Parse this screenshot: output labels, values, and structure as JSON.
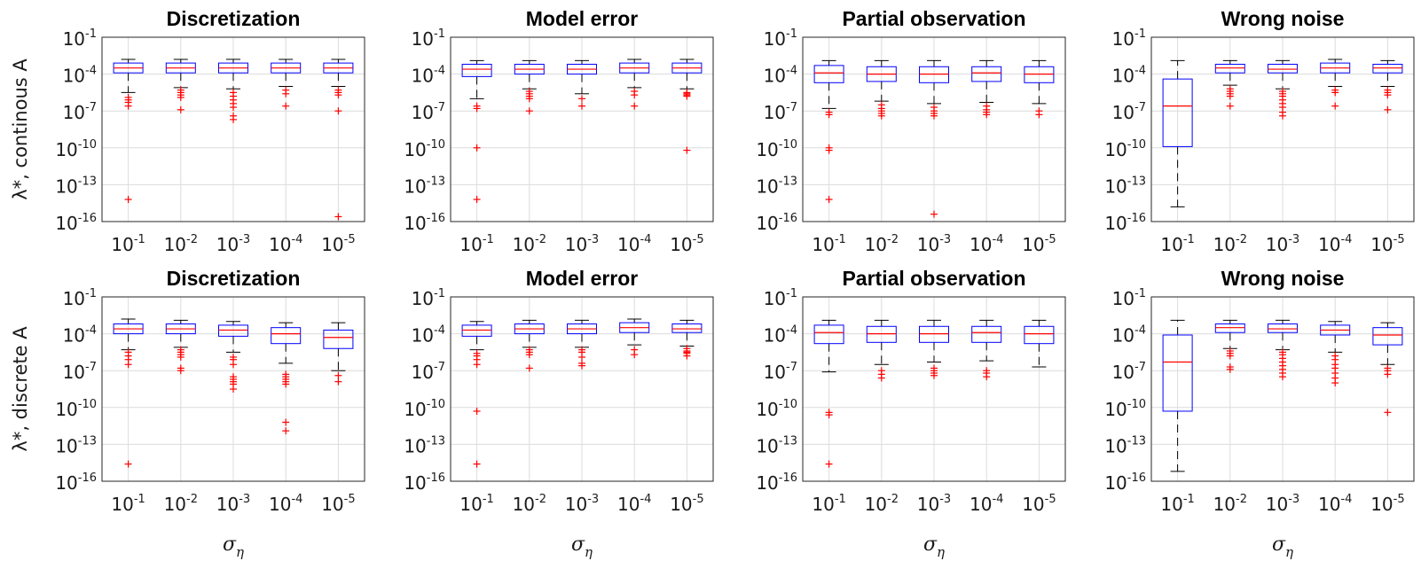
{
  "figure": {
    "row_labels": [
      "λ*, continous A",
      "λ*, discrete A"
    ],
    "xlabel": "σ_η"
  },
  "chart_data": [
    {
      "type": "box",
      "title": "Discretization",
      "ylabel": "λ*, continous A",
      "xlabel": "σ_η",
      "yscale": "log",
      "ylim": [
        1e-16,
        0.1
      ],
      "y_ticks": [
        "10^-1",
        "10^-4",
        "10^-7",
        "10^-10",
        "10^-13",
        "10^-16"
      ],
      "categories": [
        "10^-1",
        "10^-2",
        "10^-3",
        "10^-4",
        "10^-5"
      ],
      "boxes": [
        {
          "whislo_exp": -5.5,
          "q1_exp": -3.9,
          "med_exp": -3.5,
          "q3_exp": -3.1,
          "whishi_exp": -2.8,
          "outliers_exp": [
            -5.9,
            -6.1,
            -6.3,
            -6.6,
            -14.2
          ]
        },
        {
          "whislo_exp": -5.1,
          "q1_exp": -3.9,
          "med_exp": -3.5,
          "q3_exp": -3.1,
          "whishi_exp": -2.8,
          "outliers_exp": [
            -5.3,
            -5.5,
            -5.7,
            -5.9,
            -6.9
          ]
        },
        {
          "whislo_exp": -5.2,
          "q1_exp": -3.9,
          "med_exp": -3.5,
          "q3_exp": -3.1,
          "whishi_exp": -2.8,
          "outliers_exp": [
            -5.5,
            -5.8,
            -6.1,
            -6.4,
            -6.7,
            -7.4,
            -7.7
          ]
        },
        {
          "whislo_exp": -5.0,
          "q1_exp": -3.9,
          "med_exp": -3.5,
          "q3_exp": -3.1,
          "whishi_exp": -2.8,
          "outliers_exp": [
            -5.3,
            -5.6,
            -6.6
          ]
        },
        {
          "whislo_exp": -5.0,
          "q1_exp": -3.9,
          "med_exp": -3.5,
          "q3_exp": -3.1,
          "whishi_exp": -2.8,
          "outliers_exp": [
            -5.3,
            -5.5,
            -5.7,
            -7.0,
            -15.6
          ]
        }
      ]
    },
    {
      "type": "box",
      "title": "Model error",
      "xlabel": "σ_η",
      "yscale": "log",
      "ylim": [
        1e-16,
        0.1
      ],
      "y_ticks": [
        "10^-1",
        "10^-4",
        "10^-7",
        "10^-10",
        "10^-13",
        "10^-16"
      ],
      "categories": [
        "10^-1",
        "10^-2",
        "10^-3",
        "10^-4",
        "10^-5"
      ],
      "boxes": [
        {
          "whislo_exp": -6.0,
          "q1_exp": -4.2,
          "med_exp": -3.6,
          "q3_exp": -3.2,
          "whishi_exp": -2.9,
          "outliers_exp": [
            -6.6,
            -6.8,
            -10.0,
            -14.2
          ]
        },
        {
          "whislo_exp": -5.2,
          "q1_exp": -4.0,
          "med_exp": -3.6,
          "q3_exp": -3.2,
          "whishi_exp": -2.9,
          "outliers_exp": [
            -5.4,
            -5.6,
            -5.8,
            -6.0,
            -7.0
          ]
        },
        {
          "whislo_exp": -5.6,
          "q1_exp": -4.0,
          "med_exp": -3.6,
          "q3_exp": -3.2,
          "whishi_exp": -2.9,
          "outliers_exp": [
            -6.0,
            -6.6
          ]
        },
        {
          "whislo_exp": -5.1,
          "q1_exp": -3.9,
          "med_exp": -3.5,
          "q3_exp": -3.1,
          "whishi_exp": -2.8,
          "outliers_exp": [
            -5.4,
            -5.7,
            -6.6
          ]
        },
        {
          "whislo_exp": -5.2,
          "q1_exp": -3.9,
          "med_exp": -3.5,
          "q3_exp": -3.1,
          "whishi_exp": -2.8,
          "outliers_exp": [
            -5.5,
            -5.6,
            -5.7,
            -5.8,
            -10.2
          ]
        }
      ]
    },
    {
      "type": "box",
      "title": "Partial observation",
      "xlabel": "σ_η",
      "yscale": "log",
      "ylim": [
        1e-16,
        0.1
      ],
      "y_ticks": [
        "10^-1",
        "10^-4",
        "10^-7",
        "10^-10",
        "10^-13",
        "10^-16"
      ],
      "categories": [
        "10^-1",
        "10^-2",
        "10^-3",
        "10^-4",
        "10^-5"
      ],
      "boxes": [
        {
          "whislo_exp": -6.8,
          "q1_exp": -4.7,
          "med_exp": -3.9,
          "q3_exp": -3.3,
          "whishi_exp": -2.9,
          "outliers_exp": [
            -7.1,
            -7.3,
            -10.0,
            -10.2,
            -14.2
          ]
        },
        {
          "whislo_exp": -6.2,
          "q1_exp": -4.6,
          "med_exp": -4.0,
          "q3_exp": -3.4,
          "whishi_exp": -2.9,
          "outliers_exp": [
            -6.5,
            -6.8,
            -7.0,
            -7.2,
            -7.4
          ]
        },
        {
          "whislo_exp": -6.4,
          "q1_exp": -4.7,
          "med_exp": -4.0,
          "q3_exp": -3.4,
          "whishi_exp": -2.9,
          "outliers_exp": [
            -6.7,
            -7.0,
            -7.2,
            -7.4,
            -15.4
          ]
        },
        {
          "whislo_exp": -6.3,
          "q1_exp": -4.6,
          "med_exp": -3.9,
          "q3_exp": -3.4,
          "whishi_exp": -2.9,
          "outliers_exp": [
            -6.6,
            -6.9,
            -7.1,
            -7.3
          ]
        },
        {
          "whislo_exp": -6.4,
          "q1_exp": -4.7,
          "med_exp": -4.0,
          "q3_exp": -3.4,
          "whishi_exp": -2.9,
          "outliers_exp": [
            -7.0,
            -7.3
          ]
        }
      ]
    },
    {
      "type": "box",
      "title": "Wrong noise",
      "xlabel": "σ_η",
      "yscale": "log",
      "ylim": [
        1e-16,
        0.1
      ],
      "y_ticks": [
        "10^-1",
        "10^-4",
        "10^-7",
        "10^-10",
        "10^-13",
        "10^-16"
      ],
      "categories": [
        "10^-1",
        "10^-2",
        "10^-3",
        "10^-4",
        "10^-5"
      ],
      "boxes": [
        {
          "whislo_exp": -14.8,
          "q1_exp": -9.9,
          "med_exp": -6.6,
          "q3_exp": -4.4,
          "whishi_exp": -2.9,
          "outliers_exp": []
        },
        {
          "whislo_exp": -4.9,
          "q1_exp": -3.9,
          "med_exp": -3.5,
          "q3_exp": -3.2,
          "whishi_exp": -2.9,
          "outliers_exp": [
            -5.2,
            -5.4,
            -5.6,
            -5.8,
            -6.6
          ]
        },
        {
          "whislo_exp": -5.2,
          "q1_exp": -3.9,
          "med_exp": -3.6,
          "q3_exp": -3.2,
          "whishi_exp": -2.9,
          "outliers_exp": [
            -5.4,
            -5.6,
            -5.8,
            -6.1,
            -6.4,
            -6.7,
            -7.1,
            -7.4
          ]
        },
        {
          "whislo_exp": -5.0,
          "q1_exp": -3.9,
          "med_exp": -3.5,
          "q3_exp": -3.1,
          "whishi_exp": -2.8,
          "outliers_exp": [
            -5.3,
            -5.5,
            -6.6
          ]
        },
        {
          "whislo_exp": -5.0,
          "q1_exp": -3.9,
          "med_exp": -3.5,
          "q3_exp": -3.2,
          "whishi_exp": -2.9,
          "outliers_exp": [
            -5.3,
            -5.5,
            -5.7,
            -6.9
          ]
        }
      ]
    },
    {
      "type": "box",
      "title": "Discretization",
      "ylabel": "λ*, discrete A",
      "xlabel": "σ_η",
      "yscale": "log",
      "ylim": [
        1e-16,
        0.1
      ],
      "y_ticks": [
        "10^-1",
        "10^-4",
        "10^-7",
        "10^-10",
        "10^-13",
        "10^-16"
      ],
      "categories": [
        "10^-1",
        "10^-2",
        "10^-3",
        "10^-4",
        "10^-5"
      ],
      "boxes": [
        {
          "whislo_exp": -5.3,
          "q1_exp": -4.0,
          "med_exp": -3.6,
          "q3_exp": -3.2,
          "whishi_exp": -2.8,
          "outliers_exp": [
            -5.5,
            -5.8,
            -6.1,
            -6.5,
            -14.6
          ]
        },
        {
          "whislo_exp": -5.1,
          "q1_exp": -4.0,
          "med_exp": -3.6,
          "q3_exp": -3.2,
          "whishi_exp": -2.9,
          "outliers_exp": [
            -5.3,
            -5.5,
            -5.7,
            -5.9,
            -6.8,
            -7.0
          ]
        },
        {
          "whislo_exp": -5.5,
          "q1_exp": -4.2,
          "med_exp": -3.7,
          "q3_exp": -3.3,
          "whishi_exp": -3.0,
          "outliers_exp": [
            -5.9,
            -6.1,
            -6.5,
            -7.5,
            -7.7,
            -7.9,
            -8.1,
            -8.5
          ]
        },
        {
          "whislo_exp": -6.4,
          "q1_exp": -4.8,
          "med_exp": -4.0,
          "q3_exp": -3.5,
          "whishi_exp": -3.1,
          "outliers_exp": [
            -7.3,
            -7.5,
            -7.7,
            -7.9,
            -8.1,
            -11.2,
            -11.9
          ]
        },
        {
          "whislo_exp": -7.0,
          "q1_exp": -5.2,
          "med_exp": -4.3,
          "q3_exp": -3.7,
          "whishi_exp": -3.1,
          "outliers_exp": [
            -7.4,
            -7.9
          ]
        }
      ]
    },
    {
      "type": "box",
      "title": "Model error",
      "xlabel": "σ_η",
      "yscale": "log",
      "ylim": [
        1e-16,
        0.1
      ],
      "y_ticks": [
        "10^-1",
        "10^-4",
        "10^-7",
        "10^-10",
        "10^-13",
        "10^-16"
      ],
      "categories": [
        "10^-1",
        "10^-2",
        "10^-3",
        "10^-4",
        "10^-5"
      ],
      "boxes": [
        {
          "whislo_exp": -5.3,
          "q1_exp": -4.2,
          "med_exp": -3.7,
          "q3_exp": -3.3,
          "whishi_exp": -3.0,
          "outliers_exp": [
            -5.6,
            -5.8,
            -6.1,
            -6.5,
            -10.3,
            -14.6
          ]
        },
        {
          "whislo_exp": -5.1,
          "q1_exp": -4.0,
          "med_exp": -3.6,
          "q3_exp": -3.2,
          "whishi_exp": -2.9,
          "outliers_exp": [
            -5.3,
            -5.5,
            -5.7,
            -6.8
          ]
        },
        {
          "whislo_exp": -5.1,
          "q1_exp": -4.0,
          "med_exp": -3.6,
          "q3_exp": -3.2,
          "whishi_exp": -2.9,
          "outliers_exp": [
            -5.3,
            -5.5,
            -5.9,
            -6.4,
            -6.6
          ]
        },
        {
          "whislo_exp": -4.9,
          "q1_exp": -3.9,
          "med_exp": -3.5,
          "q3_exp": -3.1,
          "whishi_exp": -2.8,
          "outliers_exp": [
            -5.3,
            -5.7
          ]
        },
        {
          "whislo_exp": -5.0,
          "q1_exp": -3.9,
          "med_exp": -3.6,
          "q3_exp": -3.2,
          "whishi_exp": -2.9,
          "outliers_exp": [
            -5.2,
            -5.4,
            -5.5,
            -5.6,
            -5.8
          ]
        }
      ]
    },
    {
      "type": "box",
      "title": "Partial observation",
      "xlabel": "σ_η",
      "yscale": "log",
      "ylim": [
        1e-16,
        0.1
      ],
      "y_ticks": [
        "10^-1",
        "10^-4",
        "10^-7",
        "10^-10",
        "10^-13",
        "10^-16"
      ],
      "categories": [
        "10^-1",
        "10^-2",
        "10^-3",
        "10^-4",
        "10^-5"
      ],
      "boxes": [
        {
          "whislo_exp": -7.1,
          "q1_exp": -4.8,
          "med_exp": -3.9,
          "q3_exp": -3.3,
          "whishi_exp": -2.9,
          "outliers_exp": [
            -10.4,
            -10.6,
            -14.6
          ]
        },
        {
          "whislo_exp": -6.5,
          "q1_exp": -4.7,
          "med_exp": -4.0,
          "q3_exp": -3.4,
          "whishi_exp": -2.9,
          "outliers_exp": [
            -7.0,
            -7.3,
            -7.6
          ]
        },
        {
          "whislo_exp": -6.3,
          "q1_exp": -4.7,
          "med_exp": -4.0,
          "q3_exp": -3.4,
          "whishi_exp": -2.9,
          "outliers_exp": [
            -6.8,
            -7.0,
            -7.2,
            -7.4
          ]
        },
        {
          "whislo_exp": -6.2,
          "q1_exp": -4.7,
          "med_exp": -3.9,
          "q3_exp": -3.4,
          "whishi_exp": -2.9,
          "outliers_exp": [
            -7.0,
            -7.2,
            -7.5
          ]
        },
        {
          "whislo_exp": -6.7,
          "q1_exp": -4.8,
          "med_exp": -4.0,
          "q3_exp": -3.4,
          "whishi_exp": -2.9,
          "outliers_exp": []
        }
      ]
    },
    {
      "type": "box",
      "title": "Wrong noise",
      "xlabel": "σ_η",
      "yscale": "log",
      "ylim": [
        1e-16,
        0.1
      ],
      "y_ticks": [
        "10^-1",
        "10^-4",
        "10^-7",
        "10^-10",
        "10^-13",
        "10^-16"
      ],
      "categories": [
        "10^-1",
        "10^-2",
        "10^-3",
        "10^-4",
        "10^-5"
      ],
      "boxes": [
        {
          "whislo_exp": -15.2,
          "q1_exp": -10.3,
          "med_exp": -6.3,
          "q3_exp": -4.1,
          "whishi_exp": -2.9,
          "outliers_exp": []
        },
        {
          "whislo_exp": -5.2,
          "q1_exp": -3.9,
          "med_exp": -3.5,
          "q3_exp": -3.2,
          "whishi_exp": -2.9,
          "outliers_exp": [
            -5.4,
            -5.6,
            -5.8,
            -6.7,
            -6.9
          ]
        },
        {
          "whislo_exp": -5.3,
          "q1_exp": -3.9,
          "med_exp": -3.6,
          "q3_exp": -3.2,
          "whishi_exp": -2.9,
          "outliers_exp": [
            -5.5,
            -5.7,
            -6.0,
            -6.3,
            -6.6,
            -6.9,
            -7.2,
            -7.5
          ]
        },
        {
          "whislo_exp": -5.5,
          "q1_exp": -4.1,
          "med_exp": -3.7,
          "q3_exp": -3.3,
          "whishi_exp": -3.0,
          "outliers_exp": [
            -5.8,
            -6.1,
            -6.5,
            -6.8,
            -7.2,
            -7.6,
            -8.0
          ]
        },
        {
          "whislo_exp": -6.5,
          "q1_exp": -4.9,
          "med_exp": -4.1,
          "q3_exp": -3.5,
          "whishi_exp": -3.1,
          "outliers_exp": [
            -6.8,
            -7.0,
            -7.3,
            -10.4
          ]
        }
      ]
    }
  ]
}
